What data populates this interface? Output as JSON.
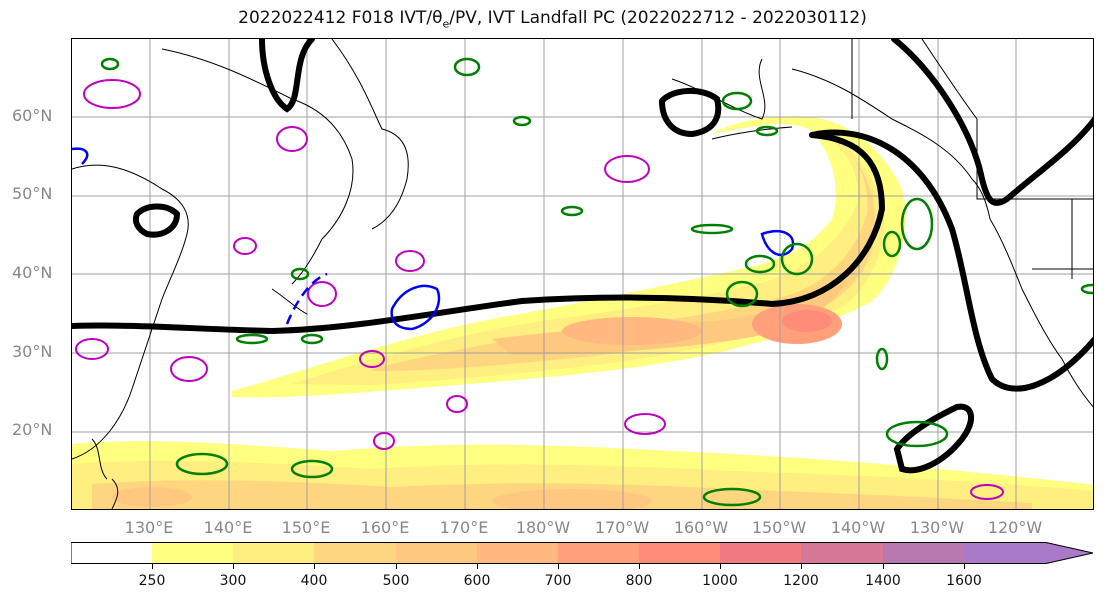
{
  "title_main": "2022022412 F018 IVT/",
  "title_theta": "θ",
  "title_sub_e": "e",
  "title_rest": "/PV, IVT Landfall PC (2022022712 - 2022030112)",
  "lat_labels": [
    "60°N",
    "50°N",
    "40°N",
    "30°N",
    "20°N"
  ],
  "lon_labels": [
    "130°E",
    "140°E",
    "150°E",
    "160°E",
    "170°E",
    "180°W",
    "170°W",
    "160°W",
    "150°W",
    "140°W",
    "130°W",
    "120°W"
  ],
  "colorbar": {
    "ticks": [
      "250",
      "300",
      "400",
      "500",
      "600",
      "700",
      "800",
      "1000",
      "1200",
      "1400",
      "1600"
    ],
    "colors": [
      "#ffffff",
      "#ffff80",
      "#ffee80",
      "#ffd680",
      "#ffc880",
      "#ffb880",
      "#ffa07a",
      "#ff8c78",
      "#f07a80",
      "#d87898",
      "#b878b0",
      "#a87ac8"
    ]
  },
  "colors": {
    "pc_contour": "#000000",
    "theta_e": "#008000",
    "pv_magenta": "#c000c0",
    "pv_blue": "#0000ff",
    "grid": "#a0a0a0",
    "coast": "#000000"
  }
}
